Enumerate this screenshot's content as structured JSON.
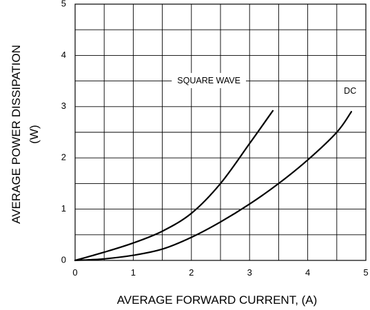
{
  "chart_data": {
    "type": "line",
    "title": "",
    "xlabel": "AVERAGE FORWARD CURRENT,  (A)",
    "ylabel_line1": "AVERAGE POWER DISSIPATION",
    "ylabel_line2": "(W)",
    "xlim": [
      0,
      5
    ],
    "ylim": [
      0,
      5
    ],
    "x_ticks": [
      0,
      1,
      2,
      3,
      4,
      5
    ],
    "y_ticks": [
      0,
      1,
      2,
      3,
      4,
      5
    ],
    "x_tick_labels": [
      "0",
      "1",
      "2",
      "3",
      "4",
      "5"
    ],
    "y_tick_labels": [
      "0",
      "1",
      "2",
      "3",
      "4",
      "5"
    ],
    "grid": true,
    "grid_minor_divisions": 2,
    "legend": "none",
    "series": [
      {
        "name": "SQUARE WAVE",
        "label_at": [
          2.3,
          3.5
        ],
        "points": [
          [
            0,
            0
          ],
          [
            0.5,
            0.16
          ],
          [
            1.0,
            0.34
          ],
          [
            1.5,
            0.57
          ],
          [
            2.0,
            0.92
          ],
          [
            2.5,
            1.5
          ],
          [
            3.0,
            2.28
          ],
          [
            3.4,
            2.92
          ]
        ]
      },
      {
        "name": "DC",
        "label_at": [
          4.73,
          3.3
        ],
        "points": [
          [
            0,
            0
          ],
          [
            0.5,
            0.03
          ],
          [
            1.0,
            0.1
          ],
          [
            1.5,
            0.22
          ],
          [
            2.0,
            0.45
          ],
          [
            2.5,
            0.75
          ],
          [
            3.0,
            1.1
          ],
          [
            3.5,
            1.5
          ],
          [
            4.0,
            1.96
          ],
          [
            4.5,
            2.5
          ],
          [
            4.75,
            2.9
          ]
        ]
      }
    ]
  }
}
